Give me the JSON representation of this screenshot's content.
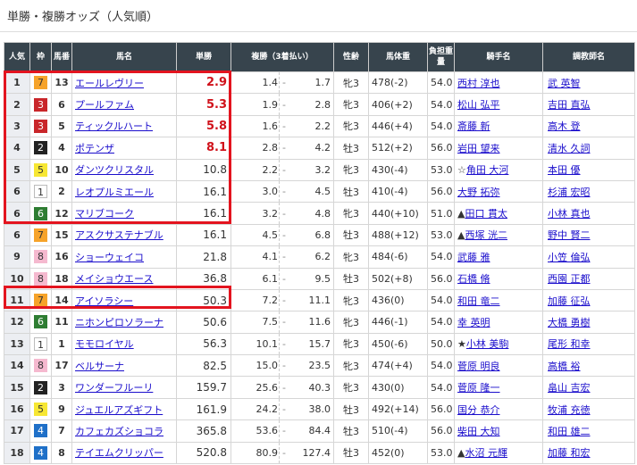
{
  "title": "単勝・複勝オッズ（人気順）",
  "headers": [
    "人気",
    "枠",
    "馬番",
    "馬名",
    "単勝",
    "複勝（3着払い）",
    "性齢",
    "馬体重",
    "負担重量",
    "騎手名",
    "調教師名"
  ],
  "frame_colors": {
    "1": "#ffffff",
    "2": "#222222",
    "3": "#c9262a",
    "4": "#1f70c8",
    "5": "#f7e733",
    "6": "#2e7d32",
    "7": "#f6a32a",
    "8": "#f5b9cf"
  },
  "highlight_color": "#e3141f",
  "rows": [
    [
      "1",
      "7",
      "13",
      "エールレヴリー",
      "2.9",
      "1.4",
      "1.7",
      "牝3",
      "478(-2)",
      "54.0",
      "",
      "西村 淳也",
      "武 英智"
    ],
    [
      "2",
      "3",
      "6",
      "プールファム",
      "5.3",
      "1.9",
      "2.8",
      "牝3",
      "406(+2)",
      "54.0",
      "",
      "松山 弘平",
      "吉田 直弘"
    ],
    [
      "3",
      "3",
      "5",
      "ティックルハート",
      "5.8",
      "1.6",
      "2.2",
      "牝3",
      "446(+4)",
      "54.0",
      "",
      "斎藤 新",
      "高木 登"
    ],
    [
      "4",
      "2",
      "4",
      "ポテンザ",
      "8.1",
      "2.8",
      "4.2",
      "牡3",
      "512(+2)",
      "56.0",
      "",
      "岩田 望来",
      "清水 久詞"
    ],
    [
      "5",
      "5",
      "10",
      "ダンツクリスタル",
      "10.8",
      "2.2",
      "3.2",
      "牝3",
      "430(-4)",
      "53.0",
      "☆",
      "角田 大河",
      "本田 優"
    ],
    [
      "6",
      "1",
      "2",
      "レオプルミエール",
      "16.1",
      "3.0",
      "4.5",
      "牡3",
      "410(-4)",
      "56.0",
      "",
      "大野 拓弥",
      "杉浦 宏昭"
    ],
    [
      "6",
      "6",
      "12",
      "マリブコーク",
      "16.1",
      "3.2",
      "4.8",
      "牝3",
      "440(+10)",
      "51.0",
      "▲",
      "田口 貫太",
      "小林 真也"
    ],
    [
      "6",
      "7",
      "15",
      "アスクサステナブル",
      "16.1",
      "4.5",
      "6.8",
      "牡3",
      "488(+12)",
      "53.0",
      "▲",
      "西塚 洸二",
      "野中 賢二"
    ],
    [
      "9",
      "8",
      "16",
      "ショーウェイコ",
      "21.8",
      "4.1",
      "6.2",
      "牝3",
      "484(-6)",
      "54.0",
      "",
      "武藤 雅",
      "小笠 倫弘"
    ],
    [
      "10",
      "8",
      "18",
      "メイショウエース",
      "36.8",
      "6.1",
      "9.5",
      "牡3",
      "502(+8)",
      "56.0",
      "",
      "石橋 脩",
      "西園 正都"
    ],
    [
      "11",
      "7",
      "14",
      "アイソラシー",
      "50.3",
      "7.2",
      "11.1",
      "牝3",
      "436(0)",
      "54.0",
      "",
      "和田 竜二",
      "加藤 征弘"
    ],
    [
      "12",
      "6",
      "11",
      "ニホンピロソラーナ",
      "50.6",
      "7.5",
      "11.6",
      "牝3",
      "446(-1)",
      "54.0",
      "",
      "幸 英明",
      "大橋 勇樹"
    ],
    [
      "13",
      "1",
      "1",
      "モモロイヤル",
      "56.3",
      "10.1",
      "15.7",
      "牝3",
      "450(-6)",
      "50.0",
      "★",
      "小林 美駒",
      "尾形 和幸"
    ],
    [
      "14",
      "8",
      "17",
      "ベルサーナ",
      "82.5",
      "15.0",
      "23.5",
      "牝3",
      "474(+4)",
      "54.0",
      "",
      "菅原 明良",
      "高橋 裕"
    ],
    [
      "15",
      "2",
      "3",
      "ワンダーフルーリ",
      "159.7",
      "25.6",
      "40.3",
      "牝3",
      "430(0)",
      "54.0",
      "",
      "菅原 隆一",
      "畠山 吉宏"
    ],
    [
      "16",
      "5",
      "9",
      "ジュエルアズギフト",
      "161.9",
      "24.2",
      "38.0",
      "牡3",
      "492(+14)",
      "56.0",
      "",
      "国分 恭介",
      "牧浦 充徳"
    ],
    [
      "17",
      "4",
      "7",
      "カフェカズショコラ",
      "365.8",
      "53.6",
      "84.4",
      "牡3",
      "510(-4)",
      "56.0",
      "",
      "柴田 大知",
      "和田 雄二"
    ],
    [
      "18",
      "4",
      "8",
      "テイエムクリッパー",
      "520.8",
      "80.9",
      "127.4",
      "牡3",
      "452(0)",
      "53.0",
      "▲",
      "水沼 元輝",
      "加藤 和宏"
    ]
  ]
}
